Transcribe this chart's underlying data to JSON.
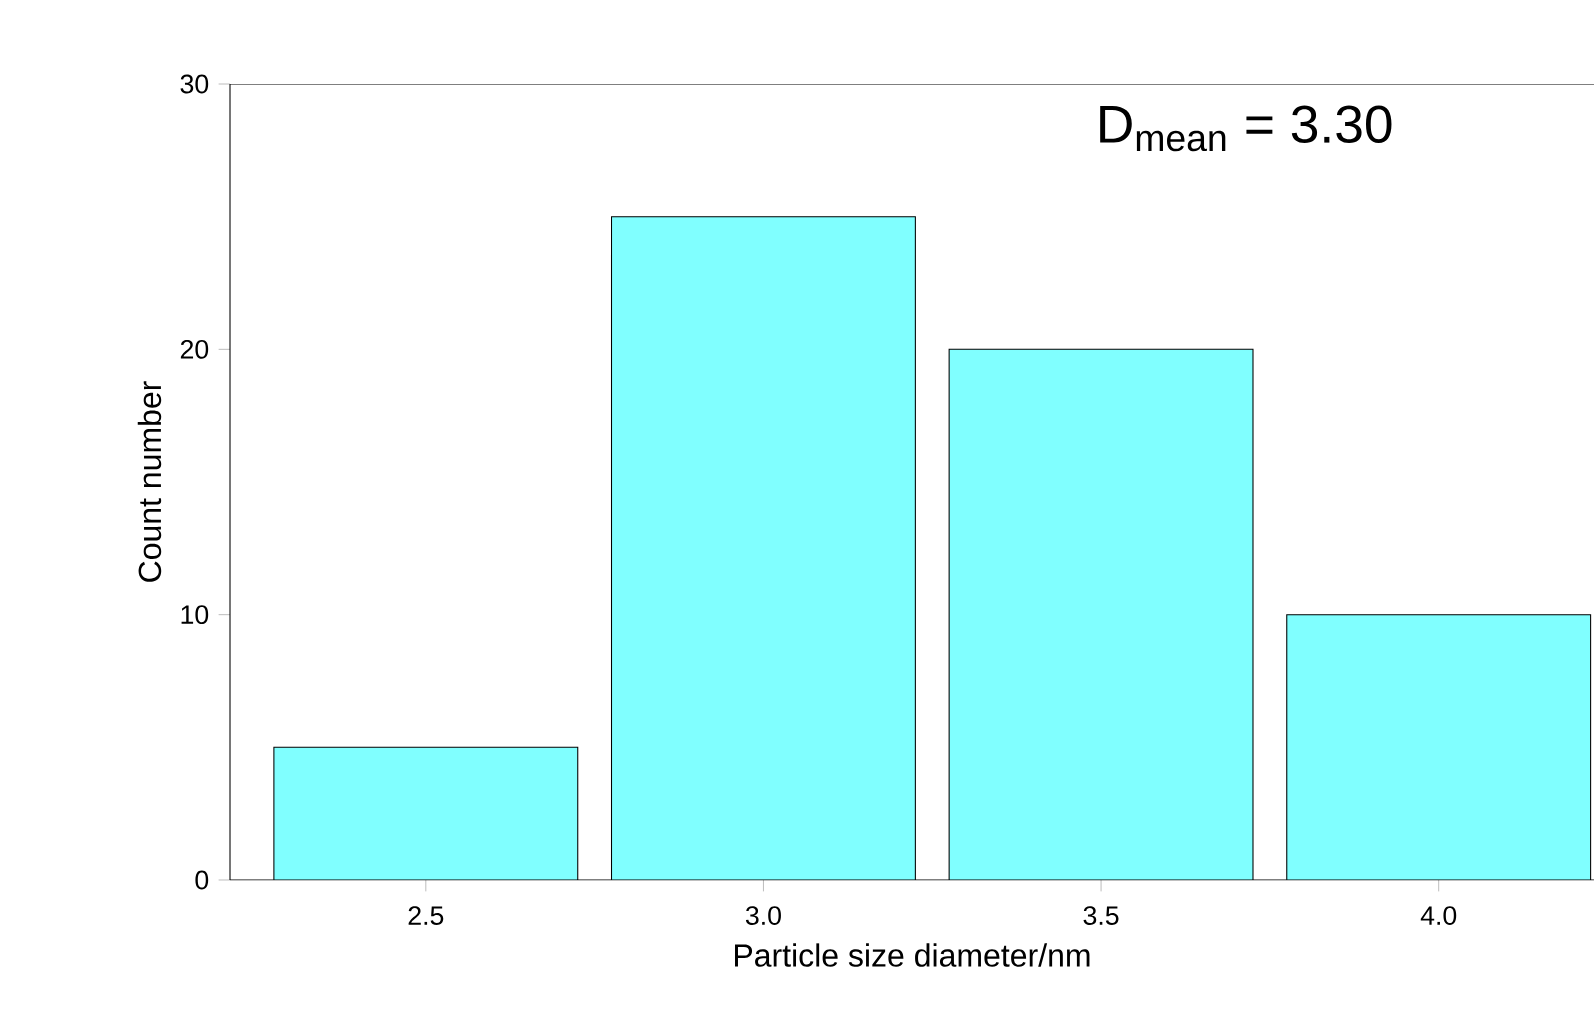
{
  "chart_data": {
    "type": "bar",
    "x": [
      2.5,
      3.0,
      3.5,
      4.0
    ],
    "values": [
      5,
      25,
      20,
      10
    ],
    "color": "#80ffff",
    "xlim": [
      2.21,
      4.23
    ],
    "xticks": [
      {
        "value": 2.5,
        "label": "2.5"
      },
      {
        "value": 3.0,
        "label": "3.0"
      },
      {
        "value": 3.5,
        "label": "3.5"
      },
      {
        "value": 4.0,
        "label": "4.0"
      }
    ],
    "ylim": [
      0,
      30
    ],
    "yticks": [
      0,
      10,
      20,
      30
    ],
    "xlabel": "Particle size diameter/nm",
    "ylabel": "Count number",
    "annotations": [
      "D$_{mean}$ = 3.30"
    ]
  }
}
